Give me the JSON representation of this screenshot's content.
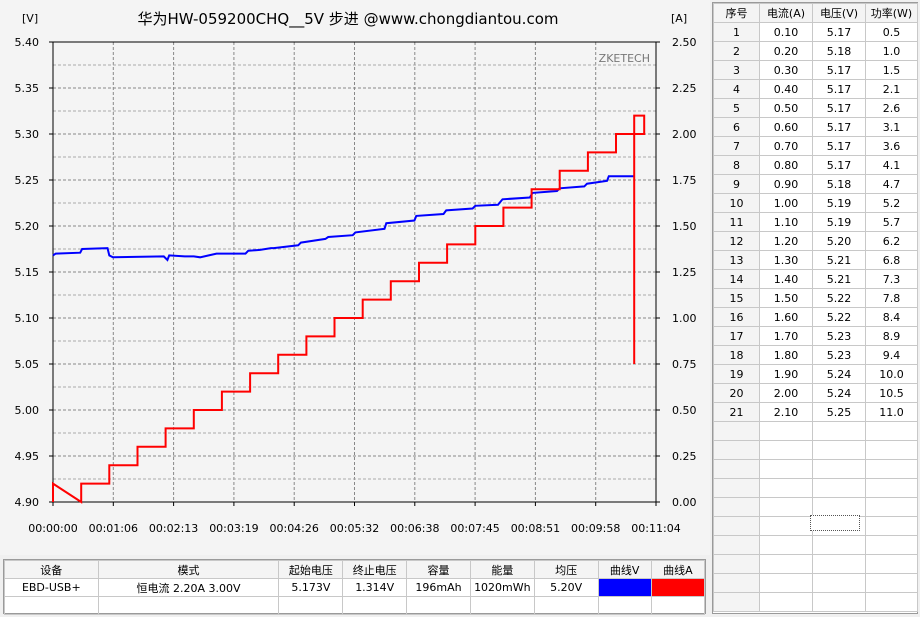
{
  "chart_data": {
    "type": "line",
    "title": "华为HW-059200CHQ__5V 步进 @www.chongdiantou.com",
    "watermark": "ZKETECH",
    "y_left_unit": "[V]",
    "y_right_unit": "[A]",
    "y_left_range": [
      4.9,
      5.4
    ],
    "y_right_range": [
      0.0,
      2.5
    ],
    "x_range_seconds": [
      0,
      664
    ],
    "grid": true,
    "y_left_ticks": [
      "5.40",
      "5.35",
      "5.30",
      "5.25",
      "5.20",
      "5.15",
      "5.10",
      "5.05",
      "5.00",
      "4.95",
      "4.90"
    ],
    "y_right_ticks": [
      "2.50",
      "2.25",
      "2.00",
      "1.75",
      "1.50",
      "1.25",
      "1.00",
      "0.75",
      "0.50",
      "0.25",
      "0.00"
    ],
    "x_ticks": [
      "00:00:00",
      "00:01:06",
      "00:02:13",
      "00:03:19",
      "00:04:26",
      "00:05:32",
      "00:06:38",
      "00:07:45",
      "00:08:51",
      "00:09:58",
      "00:11:04"
    ],
    "series": [
      {
        "name": "曲线V",
        "color": "#0000ff",
        "axis": "left",
        "points": [
          [
            0,
            5.168
          ],
          [
            3,
            5.17
          ],
          [
            30,
            5.171
          ],
          [
            32,
            5.175
          ],
          [
            60,
            5.176
          ],
          [
            62,
            5.168
          ],
          [
            66,
            5.166
          ],
          [
            122,
            5.167
          ],
          [
            126,
            5.163
          ],
          [
            128,
            5.168
          ],
          [
            145,
            5.167
          ],
          [
            155,
            5.167
          ],
          [
            162,
            5.166
          ],
          [
            180,
            5.17
          ],
          [
            212,
            5.17
          ],
          [
            215,
            5.173
          ],
          [
            228,
            5.174
          ],
          [
            240,
            5.176
          ],
          [
            243,
            5.176
          ],
          [
            270,
            5.179
          ],
          [
            273,
            5.182
          ],
          [
            300,
            5.186
          ],
          [
            303,
            5.188
          ],
          [
            330,
            5.19
          ],
          [
            333,
            5.193
          ],
          [
            365,
            5.197
          ],
          [
            367,
            5.203
          ],
          [
            398,
            5.206
          ],
          [
            400,
            5.211
          ],
          [
            430,
            5.213
          ],
          [
            433,
            5.217
          ],
          [
            462,
            5.219
          ],
          [
            465,
            5.222
          ],
          [
            490,
            5.223
          ],
          [
            495,
            5.229
          ],
          [
            525,
            5.231
          ],
          [
            528,
            5.236
          ],
          [
            555,
            5.238
          ],
          [
            558,
            5.241
          ],
          [
            585,
            5.243
          ],
          [
            588,
            5.246
          ],
          [
            610,
            5.249
          ],
          [
            612,
            5.254
          ],
          [
            640,
            5.254
          ]
        ]
      },
      {
        "name": "曲线A",
        "color": "#ff0000",
        "axis": "right",
        "steps": [
          0.1,
          0.2,
          0.3,
          0.4,
          0.5,
          0.6,
          0.7,
          0.8,
          0.9,
          1.0,
          1.1,
          1.2,
          1.3,
          1.4,
          1.5,
          1.6,
          1.7,
          1.8,
          1.9,
          2.0,
          2.1
        ],
        "step_seconds": 31,
        "start_value": 0.0,
        "end_time_seconds": 640,
        "end_value": 0.75
      }
    ]
  },
  "table": {
    "headers": [
      "序号",
      "电流(A)",
      "电压(V)",
      "功率(W)"
    ],
    "rows": [
      [
        "1",
        "0.10",
        "5.17",
        "0.5"
      ],
      [
        "2",
        "0.20",
        "5.18",
        "1.0"
      ],
      [
        "3",
        "0.30",
        "5.17",
        "1.5"
      ],
      [
        "4",
        "0.40",
        "5.17",
        "2.1"
      ],
      [
        "5",
        "0.50",
        "5.17",
        "2.6"
      ],
      [
        "6",
        "0.60",
        "5.17",
        "3.1"
      ],
      [
        "7",
        "0.70",
        "5.17",
        "3.6"
      ],
      [
        "8",
        "0.80",
        "5.17",
        "4.1"
      ],
      [
        "9",
        "0.90",
        "5.18",
        "4.7"
      ],
      [
        "10",
        "1.00",
        "5.19",
        "5.2"
      ],
      [
        "11",
        "1.10",
        "5.19",
        "5.7"
      ],
      [
        "12",
        "1.20",
        "5.20",
        "6.2"
      ],
      [
        "13",
        "1.30",
        "5.21",
        "6.8"
      ],
      [
        "14",
        "1.40",
        "5.21",
        "7.3"
      ],
      [
        "15",
        "1.50",
        "5.22",
        "7.8"
      ],
      [
        "16",
        "1.60",
        "5.22",
        "8.4"
      ],
      [
        "17",
        "1.70",
        "5.23",
        "8.9"
      ],
      [
        "18",
        "1.80",
        "5.23",
        "9.4"
      ],
      [
        "19",
        "1.90",
        "5.24",
        "10.0"
      ],
      [
        "20",
        "2.00",
        "5.24",
        "10.5"
      ],
      [
        "21",
        "2.10",
        "5.25",
        "11.0"
      ]
    ],
    "empty_rows": 10
  },
  "summary": {
    "headers": [
      "设备",
      "模式",
      "起始电压",
      "终止电压",
      "容量",
      "能量",
      "均压",
      "曲线V",
      "曲线A"
    ],
    "values": [
      "EBD-USB+",
      "恒电流  2.20A  3.00V",
      "5.173V",
      "1.314V",
      "196mAh",
      "1020mWh",
      "5.20V"
    ],
    "swatch_v_color": "#0000ff",
    "swatch_a_color": "#ff0000"
  }
}
